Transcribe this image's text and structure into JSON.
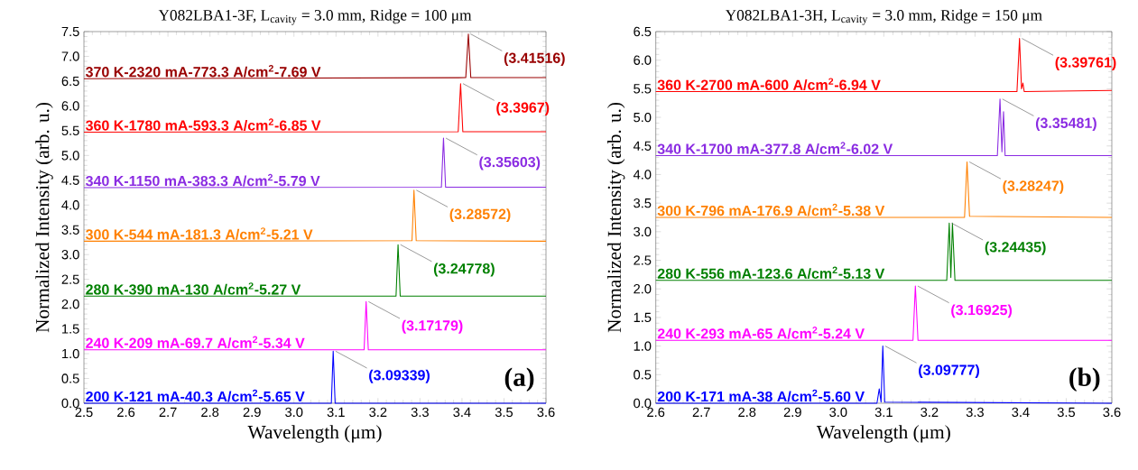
{
  "chart_data": [
    {
      "type": "line",
      "title": "Y082LBA1-3F, L$_{cavity}$ = 3.0 mm, Ridge = 100 μm",
      "xlabel": "Wavelength (μm)",
      "ylabel": "Normalized Intensity (arb. u.)",
      "xlim": [
        2.5,
        3.6
      ],
      "ylim": [
        0,
        7.5
      ],
      "xticks": [
        2.5,
        2.6,
        2.7,
        2.8,
        2.9,
        {
          "value": 3,
          "label": "3.0"
        },
        3.1,
        3.2,
        3.3,
        3.4,
        3.5,
        3.6
      ],
      "yticks": [
        {
          "value": 0,
          "label": "0.0"
        },
        0.5,
        {
          "value": 1,
          "label": "1.0"
        },
        1.5,
        {
          "value": 2,
          "label": "2.0"
        },
        2.5,
        {
          "value": 3,
          "label": "3.0"
        },
        3.5,
        {
          "value": 4,
          "label": "4.0"
        },
        4.5,
        {
          "value": 5,
          "label": "5.0"
        },
        5.5,
        {
          "value": 6,
          "label": "6.0"
        },
        6.5,
        {
          "value": 7,
          "label": "7.0"
        },
        7.5
      ],
      "series": [
        {
          "name": "370 K-2320 mA-773.3 A/cm$^{2}$-7.69 V",
          "color": "#990000",
          "x": [
            2.5,
            3.409,
            3.4152,
            3.421,
            3.6
          ],
          "values": [
            6.55,
            6.57,
            7.45,
            6.57,
            6.57
          ]
        },
        {
          "name": "360 K-1780 mA-593.3 A/cm$^{2}$-6.85 V",
          "color": "#ff0000",
          "x": [
            2.5,
            3.391,
            3.3967,
            3.402,
            3.6
          ],
          "values": [
            5.47,
            5.48,
            6.45,
            5.48,
            5.48
          ]
        },
        {
          "name": "340 K-1150 mA-383.3 A/cm$^{2}$-5.79 V",
          "color": "#8a2be2",
          "x": [
            2.5,
            3.351,
            3.356,
            3.361,
            3.6
          ],
          "values": [
            4.35,
            4.36,
            5.35,
            4.36,
            4.36
          ]
        },
        {
          "name": "300 K-544 mA-181.3 A/cm$^{2}$-5.21 V",
          "color": "#ff8000",
          "x": [
            2.5,
            3.281,
            3.2857,
            3.291,
            3.6
          ],
          "values": [
            3.27,
            3.28,
            4.3,
            3.28,
            3.27
          ]
        },
        {
          "name": "280 K-390 mA-130 A/cm$^{2}$-5.27 V",
          "color": "#008000",
          "x": [
            2.5,
            3.243,
            3.2478,
            3.253,
            3.6
          ],
          "values": [
            2.16,
            2.16,
            3.2,
            2.16,
            2.16
          ]
        },
        {
          "name": "240 K-209 mA-69.7 A/cm$^{2}$-5.34 V",
          "color": "#ff00ff",
          "x": [
            2.5,
            3.167,
            3.1718,
            3.177,
            3.6
          ],
          "values": [
            1.08,
            1.08,
            2.05,
            1.08,
            1.08
          ]
        },
        {
          "name": "200 K-121 mA-40.3 A/cm$^{2}$-5.65 V",
          "color": "#0000ff",
          "x": [
            2.5,
            3.089,
            3.0934,
            3.098,
            3.6
          ],
          "values": [
            0,
            0,
            1.05,
            0,
            0
          ]
        }
      ],
      "annotations": [
        {
          "text": "(3.41516)",
          "x": 3.4152,
          "y": 7.45
        },
        {
          "text": "(3.3967)",
          "x": 3.3967,
          "y": 6.45
        },
        {
          "text": "(3.35603)",
          "x": 3.356,
          "y": 5.35
        },
        {
          "text": "(3.28572)",
          "x": 3.2857,
          "y": 4.3
        },
        {
          "text": "(3.24778)",
          "x": 3.2478,
          "y": 3.2
        },
        {
          "text": "(3.17179)",
          "x": 3.1718,
          "y": 2.05
        },
        {
          "text": "(3.09339)",
          "x": 3.0934,
          "y": 1.05
        },
        "(a)"
      ]
    },
    {
      "type": "line",
      "title": "Y082LBA1-3H, L$_{cavity}$ = 3.0 mm, Ridge = 150 μm",
      "xlabel": "Wavelength (μm)",
      "ylabel": "Normalized Intensity (arb. u.)",
      "xlim": [
        2.6,
        3.6
      ],
      "ylim": [
        0,
        6.5
      ],
      "xticks": [
        2.6,
        2.7,
        2.8,
        2.9,
        {
          "value": 3,
          "label": "3.0"
        },
        3.1,
        3.2,
        3.3,
        3.4,
        3.5,
        3.6
      ],
      "yticks": [
        {
          "value": 0,
          "label": "0.0"
        },
        0.5,
        {
          "value": 1,
          "label": "1.0"
        },
        1.5,
        {
          "value": 2,
          "label": "2.0"
        },
        2.5,
        {
          "value": 3,
          "label": "3.0"
        },
        3.5,
        {
          "value": 4,
          "label": "4.0"
        },
        4.5,
        {
          "value": 5,
          "label": "5.0"
        },
        5.5,
        {
          "value": 6,
          "label": "6.0"
        },
        6.5
      ],
      "series": [
        {
          "name": "360 K-2700 mA-600 A/cm$^{2}$-6.94 V",
          "color": "#ff0000",
          "x": [
            2.6,
            3.392,
            3.3976,
            3.402,
            3.405,
            3.408,
            3.6
          ],
          "values": [
            5.45,
            5.45,
            6.38,
            5.5,
            5.6,
            5.45,
            5.47
          ]
        },
        {
          "name": "340 K-1700 mA-377.8 A/cm$^{2}$-6.02 V",
          "color": "#8a2be2",
          "x": [
            2.6,
            3.349,
            3.3548,
            3.359,
            3.3625,
            3.366,
            3.6
          ],
          "values": [
            4.33,
            4.33,
            5.32,
            4.4,
            5.1,
            4.33,
            4.33
          ]
        },
        {
          "name": "300 K-796 mA-176.9 A/cm$^{2}$-5.38 V",
          "color": "#ff8000",
          "x": [
            2.6,
            3.277,
            3.2825,
            3.288,
            3.6
          ],
          "values": [
            3.25,
            3.25,
            4.22,
            3.27,
            3.25
          ]
        },
        {
          "name": "280 K-556 mA-123.6 A/cm$^{2}$-5.13 V",
          "color": "#008000",
          "x": [
            2.6,
            3.238,
            3.2435,
            3.247,
            3.2505,
            3.256,
            3.6
          ],
          "values": [
            2.15,
            2.15,
            3.15,
            2.2,
            3.15,
            2.15,
            2.15
          ]
        },
        {
          "name": "240 K-293 mA-65 A/cm$^{2}$-5.24 V",
          "color": "#ff00ff",
          "x": [
            2.6,
            3.164,
            3.1692,
            3.175,
            3.6
          ],
          "values": [
            1.1,
            1.1,
            2.05,
            1.1,
            1.1
          ]
        },
        {
          "name": "200 K-171 mA-38 A/cm$^{2}$-5.60 V",
          "color": "#0000ff",
          "x": [
            2.6,
            3.085,
            3.09,
            3.094,
            3.0978,
            3.102,
            3.6
          ],
          "values": [
            0,
            0,
            0.25,
            0.02,
            1.0,
            0.02,
            0
          ]
        }
      ],
      "annotations": [
        {
          "text": "(3.39761)",
          "x": 3.3976,
          "y": 6.38
        },
        {
          "text": "(3.35481)",
          "x": 3.3548,
          "y": 5.32
        },
        {
          "text": "(3.28247)",
          "x": 3.2825,
          "y": 4.22
        },
        {
          "text": "(3.24435)",
          "x": 3.2435,
          "y": 3.15
        },
        {
          "text": "(3.16925)",
          "x": 3.1692,
          "y": 2.05
        },
        {
          "text": "(3.09777)",
          "x": 3.0978,
          "y": 1.0
        },
        "(b)"
      ]
    }
  ]
}
